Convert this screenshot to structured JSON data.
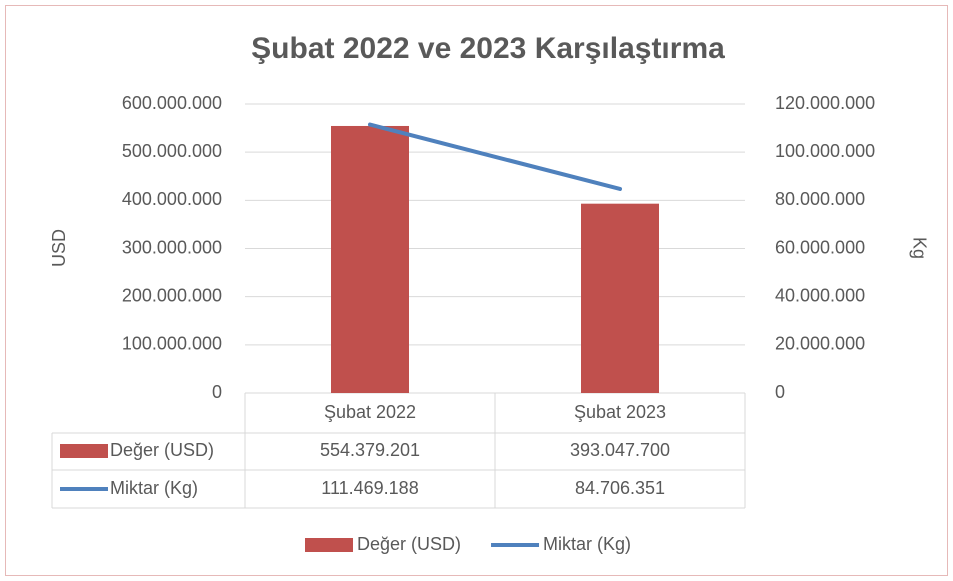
{
  "chart_data": {
    "type": "bar+line",
    "title": "Şubat 2022 ve 2023 Karşılaştırma",
    "y_label": "USD",
    "y2_label": "Kg",
    "categories": [
      "Şubat 2022",
      "Şubat 2023"
    ],
    "series": [
      {
        "name": "Değer (USD)",
        "type": "bar",
        "color": "#c0504d",
        "values": [
          554379201,
          393047700
        ],
        "value_labels": [
          "554.379.201",
          "393.047.700"
        ]
      },
      {
        "name": "Miktar (Kg)",
        "type": "line",
        "axis": "y2",
        "color": "#4f81bd",
        "values": [
          111469188,
          84706351
        ],
        "value_labels": [
          "111.469.188",
          "84.706.351"
        ]
      }
    ],
    "ylim": [
      0,
      600000000
    ],
    "yticks": [
      0,
      {
        "value": 100000000,
        "label": "100.000.000"
      },
      {
        "value": 200000000,
        "label": "200.000.000"
      },
      {
        "value": 300000000,
        "label": "300.000.000"
      },
      {
        "value": 400000000,
        "label": "400.000.000"
      },
      {
        "value": 500000000,
        "label": "500.000.000"
      },
      {
        "value": 600000000,
        "label": "600.000.000"
      }
    ],
    "y2lim": [
      0,
      120000000
    ],
    "y2ticks": [
      0,
      {
        "value": 20000000,
        "label": "20.000.000"
      },
      {
        "value": 40000000,
        "label": "40.000.000"
      },
      {
        "value": 60000000,
        "label": "60.000.000"
      },
      {
        "value": 80000000,
        "label": "80.000.000"
      },
      {
        "value": 100000000,
        "label": "100.000.000"
      },
      {
        "value": 120000000,
        "label": "120.000.000"
      }
    ],
    "grid": true,
    "legend": "bottom"
  }
}
